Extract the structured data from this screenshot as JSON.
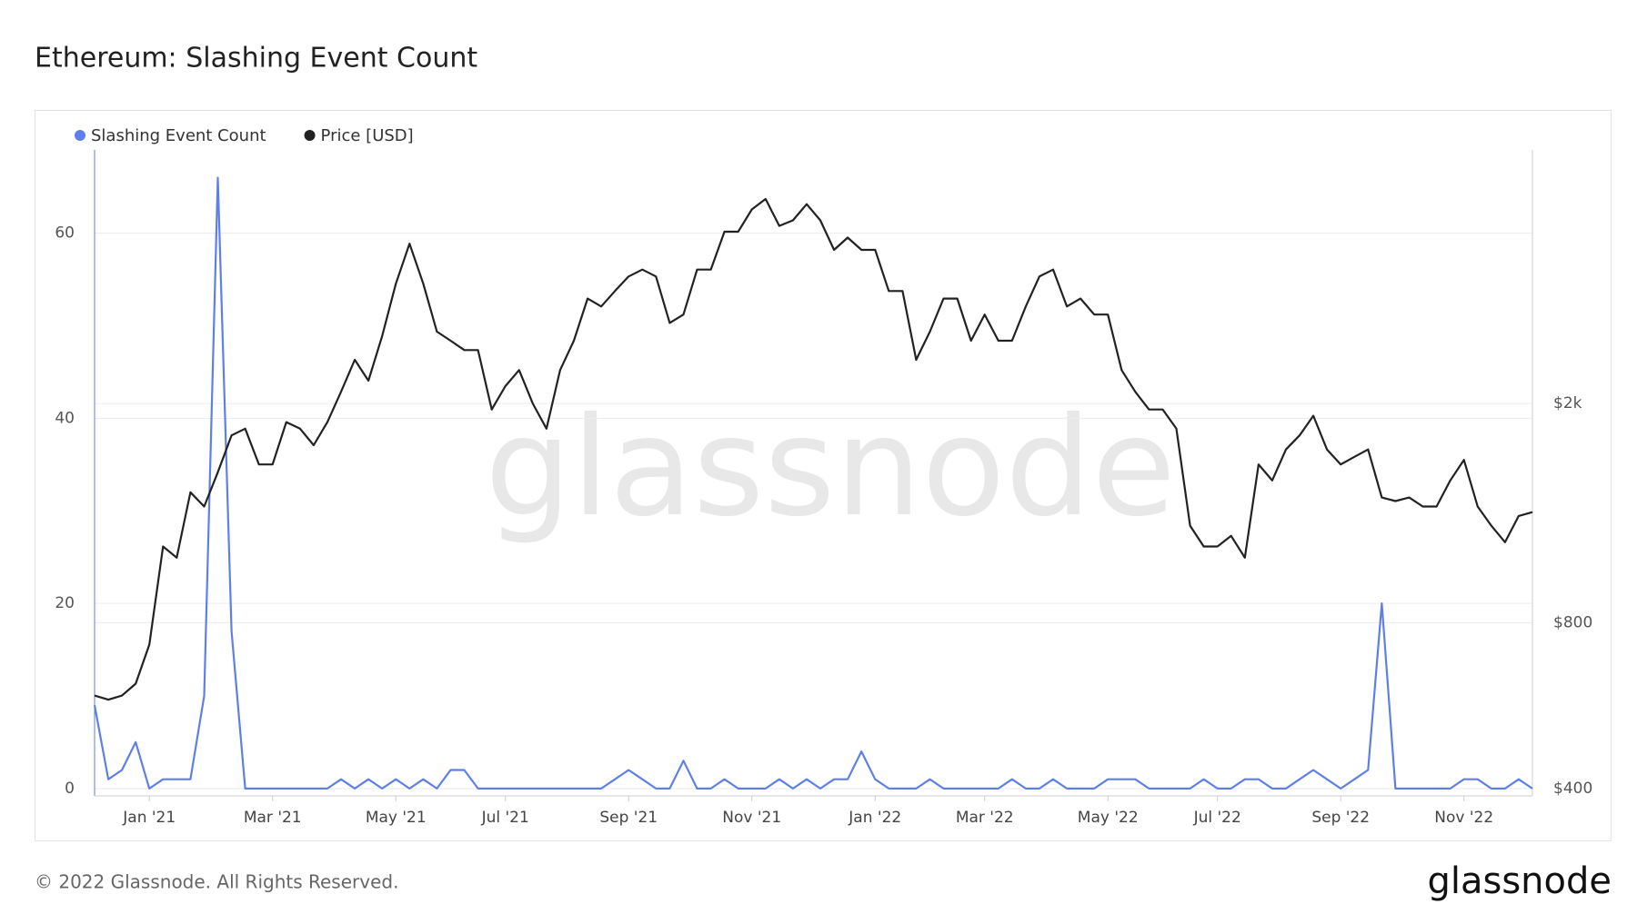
{
  "chart_data": {
    "type": "line",
    "title": "Ethereum: Slashing Event Count",
    "categories": [
      null,
      null,
      null,
      null,
      "Jan '21",
      null,
      null,
      null,
      null,
      null,
      null,
      null,
      null,
      "Mar '21",
      null,
      null,
      null,
      null,
      null,
      null,
      null,
      null,
      "May '21",
      null,
      null,
      null,
      null,
      null,
      null,
      null,
      "Jul '21",
      null,
      null,
      null,
      null,
      null,
      null,
      null,
      null,
      "Sep '21",
      null,
      null,
      null,
      null,
      null,
      null,
      null,
      null,
      "Nov '21",
      null,
      null,
      null,
      null,
      null,
      null,
      null,
      null,
      "Jan '22",
      null,
      null,
      null,
      null,
      null,
      null,
      null,
      "Mar '22",
      null,
      null,
      null,
      null,
      null,
      null,
      null,
      null,
      "May '22",
      null,
      null,
      null,
      null,
      null,
      null,
      null,
      "Jul '22",
      null,
      null,
      null,
      null,
      null,
      null,
      null,
      null,
      "Sep '22",
      null,
      null,
      null,
      null,
      null,
      null,
      null,
      null,
      "Nov '22",
      null,
      null,
      null,
      null,
      null
    ],
    "series": [
      {
        "name": "Slashing Event Count",
        "color": "#5f7fe8",
        "axis": "y",
        "values": [
          9,
          1,
          2,
          5,
          0,
          1,
          1,
          1,
          10,
          66,
          17,
          0,
          0,
          0,
          0,
          0,
          0,
          0,
          1,
          0,
          1,
          0,
          1,
          0,
          1,
          0,
          2,
          2,
          0,
          0,
          0,
          0,
          0,
          0,
          0,
          0,
          0,
          0,
          1,
          2,
          1,
          0,
          0,
          3,
          0,
          0,
          1,
          0,
          0,
          0,
          1,
          0,
          1,
          0,
          1,
          1,
          4,
          1,
          0,
          0,
          0,
          1,
          0,
          0,
          0,
          0,
          0,
          1,
          0,
          0,
          1,
          0,
          0,
          0,
          1,
          1,
          1,
          0,
          0,
          0,
          0,
          1,
          0,
          0,
          1,
          1,
          0,
          0,
          1,
          2,
          1,
          0,
          1,
          2,
          20,
          0,
          0,
          0,
          0,
          0,
          1,
          1,
          0,
          0,
          1,
          0
        ]
      },
      {
        "name": "Price [USD]",
        "color": "#222222",
        "axis": "y2",
        "values": [
          590,
          580,
          590,
          620,
          730,
          1100,
          1050,
          1380,
          1300,
          1500,
          1750,
          1800,
          1550,
          1550,
          1850,
          1800,
          1680,
          1850,
          2100,
          2400,
          2200,
          2650,
          3300,
          3900,
          3300,
          2700,
          2600,
          2500,
          2500,
          1950,
          2150,
          2300,
          2000,
          1800,
          2300,
          2600,
          3100,
          3000,
          3200,
          3400,
          3500,
          3400,
          2800,
          2900,
          3500,
          3500,
          4100,
          4100,
          4500,
          4700,
          4200,
          4300,
          4600,
          4300,
          3800,
          4000,
          3800,
          3800,
          3200,
          3200,
          2400,
          2700,
          3100,
          3100,
          2600,
          2900,
          2600,
          2600,
          3000,
          3400,
          3500,
          3000,
          3100,
          2900,
          2900,
          2300,
          2100,
          1950,
          1950,
          1800,
          1200,
          1100,
          1100,
          1150,
          1050,
          1550,
          1450,
          1650,
          1750,
          1900,
          1650,
          1550,
          1600,
          1650,
          1350,
          1330,
          1350,
          1300,
          1300,
          1450,
          1580,
          1300,
          1200,
          1120,
          1250,
          1270
        ]
      }
    ],
    "ylim": [
      -0.8,
      69
    ],
    "yticks": [
      0,
      20,
      40,
      60
    ],
    "y2lim": [
      388,
      5770
    ],
    "y2ticks": [
      {
        "value": 400,
        "label": "$400"
      },
      {
        "value": 800,
        "label": "$800"
      },
      {
        "value": 2000,
        "label": "$2k"
      }
    ],
    "y2scale": "log",
    "grid": true,
    "legend": "top-left"
  },
  "footer": "© 2022 Glassnode. All Rights Reserved.",
  "brand": "glassnode"
}
